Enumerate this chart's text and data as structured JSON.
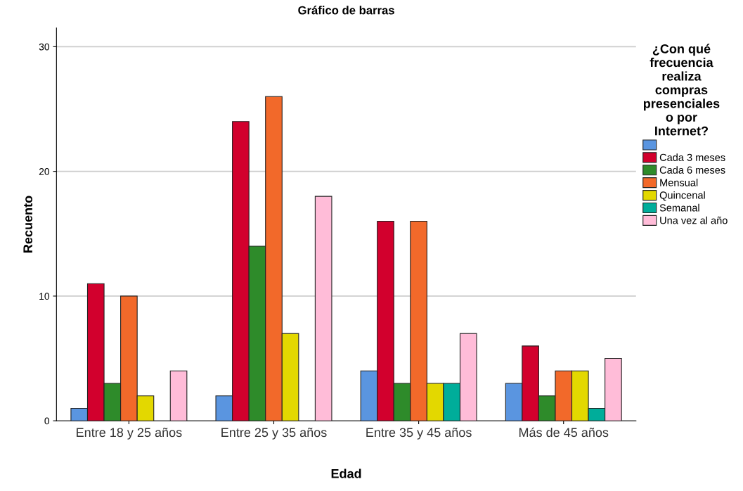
{
  "chart_data": {
    "type": "bar",
    "title": "Gráfico de barras",
    "xlabel": "Edad",
    "ylabel": "Recuento",
    "legend_title": "¿Con qué\nfrecuencia\nrealiza\ncompras\npresenciales\no por\nInternet?",
    "categories": [
      "Entre 18 y 25 años",
      "Entre 25 y 35 años",
      "Entre 35 y 45 años",
      "Más de 45 años"
    ],
    "series": [
      {
        "color": "#5a95e0",
        "values": [
          1,
          2,
          4,
          3
        ]
      },
      {
        "name": "Cada 3 meses",
        "color": "#d2002d",
        "values": [
          11,
          24,
          16,
          6
        ]
      },
      {
        "name": "Cada 6 meses",
        "color": "#2e8b2a",
        "values": [
          3,
          14,
          3,
          2
        ]
      },
      {
        "name": "Mensual",
        "color": "#f2692a",
        "values": [
          10,
          26,
          16,
          4
        ]
      },
      {
        "name": "Quincenal",
        "color": "#e3d800",
        "values": [
          2,
          7,
          3,
          4
        ]
      },
      {
        "name": "Semanal",
        "color": "#00ad9a",
        "values": [
          null,
          null,
          3,
          1
        ]
      },
      {
        "name": "Una vez al año",
        "color": "#ffbcd8",
        "values": [
          4,
          18,
          7,
          5
        ]
      }
    ],
    "ylim": [
      0,
      31.5
    ],
    "yticks": [
      0,
      10,
      20,
      30
    ],
    "grid": "y",
    "legend": "right"
  }
}
